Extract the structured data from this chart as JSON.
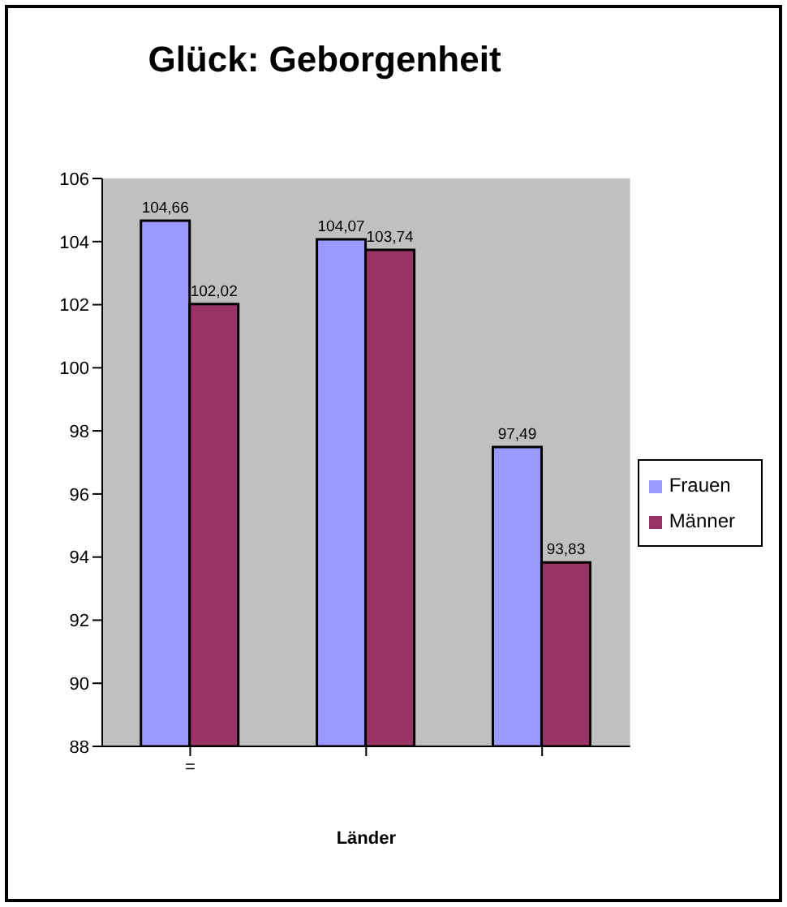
{
  "chart_data": {
    "type": "bar",
    "title": "Glück: Geborgenheit",
    "xlabel": "Länder",
    "categories": [
      "=",
      null,
      null
    ],
    "series": [
      {
        "name": "Frauen",
        "color": "#9999ff",
        "values": [
          104.66,
          104.07,
          97.49
        ],
        "value_labels": [
          "104,66",
          "104,07",
          "97,49"
        ]
      },
      {
        "name": "Männer",
        "color": "#993366",
        "values": [
          102.02,
          103.74,
          93.83
        ],
        "value_labels": [
          "102,02",
          "103,74",
          "93,83"
        ]
      }
    ],
    "ylim": [
      88,
      106
    ],
    "yticks": [
      88,
      90,
      92,
      94,
      96,
      98,
      100,
      102,
      104,
      106
    ],
    "grid": false,
    "legend": "right"
  }
}
